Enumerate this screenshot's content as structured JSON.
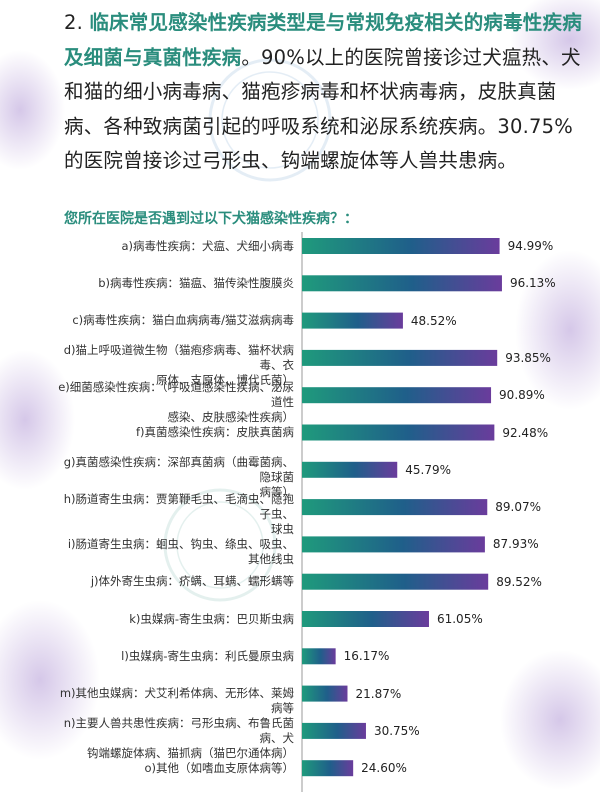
{
  "paragraph": {
    "prefix": "2. ",
    "highlight": "临床常见感染性疾病类型是与常规免疫相关的病毒性疾病及细菌与真菌性疾病",
    "body": "。90%以上的医院曾接诊过犬瘟热、犬和猫的细小病毒病、猫疱疹病毒和杯状病毒病，皮肤真菌病、各种致病菌引起的呼吸系统和泌尿系统疾病。30.75%的医院曾接诊过弓形虫、钩端螺旋体等人兽共患病。"
  },
  "colors": {
    "accent_text": "#2a8d7d",
    "bar_gradient_start": "#1f9a7c",
    "bar_gradient_mid": "#1f5f8a",
    "bar_gradient_end": "#6a3c9c"
  },
  "chart_data": {
    "type": "bar",
    "orientation": "horizontal",
    "title": "您所在医院是否遇到过以下犬猫感染性疾病？：",
    "xlim": [
      0,
      100
    ],
    "unit": "%",
    "categories": [
      "a)病毒性疾病：犬瘟、犬细小病毒",
      "b)病毒性疾病：猫瘟、猫传染性腹膜炎",
      "c)病毒性疾病：猫白血病病毒/猫艾滋病病毒",
      "d)猫上呼吸道微生物（猫疱疹病毒、猫杯状病毒、衣原体、支原体、博代氏菌）",
      "e)细菌感染性疾病：（呼吸道感染性疾病、泌尿道性感染、皮肤感染性疾病）",
      "f)真菌感染性疾病：皮肤真菌病",
      "g)真菌感染性疾病：深部真菌病（曲霉菌病、隐球菌病等）",
      "h)肠道寄生虫病：贾第鞭毛虫、毛滴虫、隐孢子虫、球虫",
      "i)肠道寄生虫病：蛔虫、钩虫、绦虫、吸虫、其他线虫",
      "j)体外寄生虫病：疥螨、耳螨、蠕形螨等",
      "k)虫媒病-寄生虫病：巴贝斯虫病",
      "l)虫媒病-寄生虫病：利氏曼原虫病",
      "m)其他虫媒病：犬艾利希体病、无形体、莱姆病等",
      "n)主要人兽共患性疾病：弓形虫病、布鲁氏菌病、犬钩端螺旋体病、猫抓病（猫巴尔通体病）",
      "o)其他（如嗜血支原体病等）"
    ],
    "display_lines": [
      [
        "a)病毒性疾病：犬瘟、犬细小病毒"
      ],
      [
        "b)病毒性疾病：猫瘟、猫传染性腹膜炎"
      ],
      [
        "c)病毒性疾病：猫白血病病毒/猫艾滋病病毒"
      ],
      [
        "d)猫上呼吸道微生物（猫疱疹病毒、猫杯状病毒、衣",
        "原体、支原体、博代氏菌）"
      ],
      [
        "e)细菌感染性疾病：（呼吸道感染性疾病、泌尿道性",
        "感染、皮肤感染性疾病）"
      ],
      [
        "f)真菌感染性疾病：皮肤真菌病"
      ],
      [
        "g)真菌感染性疾病：深部真菌病（曲霉菌病、隐球菌",
        "病等）"
      ],
      [
        "h)肠道寄生虫病：贾第鞭毛虫、毛滴虫、隐孢子虫、",
        "球虫"
      ],
      [
        "i)肠道寄生虫病：蛔虫、钩虫、绦虫、吸虫、其他线虫"
      ],
      [
        "j)体外寄生虫病：疥螨、耳螨、蠕形螨等"
      ],
      [
        "k)虫媒病-寄生虫病：巴贝斯虫病"
      ],
      [
        "l)虫媒病-寄生虫病：利氏曼原虫病"
      ],
      [
        "m)其他虫媒病：犬艾利希体病、无形体、莱姆病等"
      ],
      [
        "n)主要人兽共患性疾病：弓形虫病、布鲁氏菌病、犬",
        "钩端螺旋体病、猫抓病（猫巴尔通体病）"
      ],
      [
        "o)其他（如嗜血支原体病等）"
      ]
    ],
    "values": [
      94.99,
      96.13,
      48.52,
      93.85,
      90.89,
      92.48,
      45.79,
      89.07,
      87.93,
      89.52,
      61.05,
      16.17,
      21.87,
      30.75,
      24.6
    ],
    "value_labels": [
      "94.99%",
      "96.13%",
      "48.52%",
      "93.85%",
      "90.89%",
      "92.48%",
      "45.79%",
      "89.07%",
      "87.93%",
      "89.52%",
      "61.05%",
      "16.17%",
      "21.87%",
      "30.75%",
      "24.60%"
    ]
  }
}
